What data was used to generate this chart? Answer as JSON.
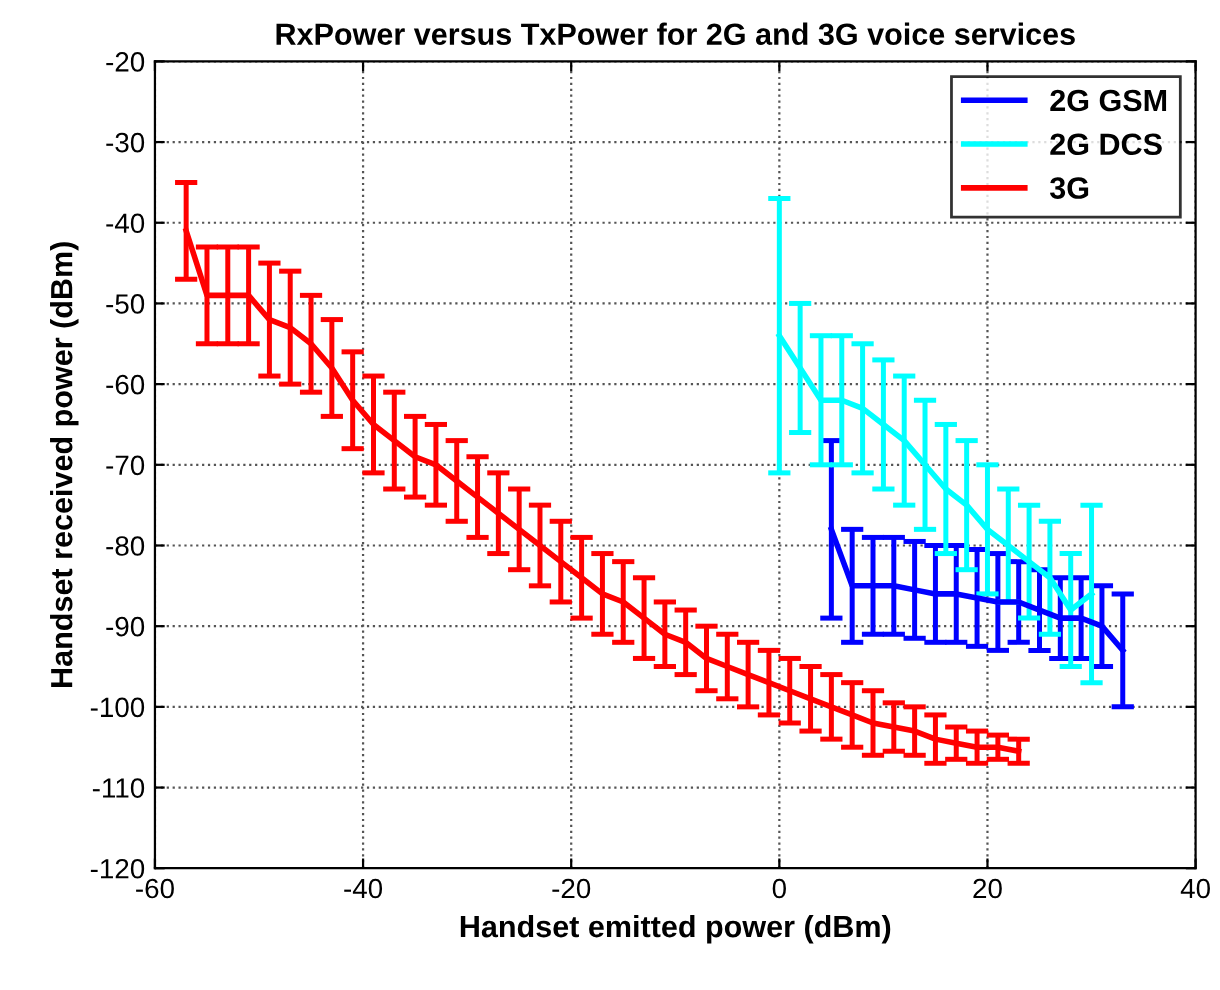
{
  "chart_data": {
    "type": "line",
    "title": "RxPower versus TxPower for 2G and 3G voice services",
    "xlabel": "Handset emitted power (dBm)",
    "ylabel": "Handset received power (dBm)",
    "xlim": [
      -60,
      40
    ],
    "xticks": [
      -60,
      -40,
      -20,
      0,
      20,
      40
    ],
    "ylim": [
      -120,
      -20
    ],
    "yticks": [
      -120,
      -110,
      -100,
      -90,
      -80,
      -70,
      -60,
      -50,
      -40,
      -30,
      -20
    ],
    "grid": true,
    "line_style": "solid",
    "legend": "top right",
    "marker": "none",
    "series": [
      {
        "name": "2G GSM",
        "color": "#0000ff",
        "x": [
          5,
          7,
          9,
          11,
          13,
          15,
          17,
          19,
          21,
          23,
          25,
          27,
          29,
          31,
          33
        ],
        "values": [
          -78,
          -85,
          -85,
          -85,
          -85.5,
          -86,
          -86,
          -86.5,
          -87,
          -87,
          -88,
          -89,
          -89,
          -90,
          -93
        ],
        "errors": [
          11,
          7,
          6,
          6,
          6,
          6,
          6,
          6,
          6,
          5,
          5,
          5,
          5,
          5,
          7
        ]
      },
      {
        "name": "2G DCS",
        "color": "#00ffff",
        "x": [
          0,
          2,
          4,
          6,
          8,
          10,
          12,
          14,
          16,
          18,
          20,
          22,
          24,
          26,
          28,
          30
        ],
        "values": [
          -54,
          -58,
          -62,
          -62,
          -63,
          -65,
          -67,
          -70,
          -73,
          -75,
          -78,
          -80,
          -82,
          -84,
          -88,
          -86
        ],
        "errors": [
          17,
          8,
          8,
          8,
          8,
          8,
          8,
          8,
          8,
          8,
          8,
          7,
          7,
          7,
          7,
          11
        ]
      },
      {
        "name": "3G",
        "color": "#ff0000",
        "x": [
          -57,
          -55,
          -53,
          -51,
          -49,
          -47,
          -45,
          -43,
          -41,
          -39,
          -37,
          -35,
          -33,
          -31,
          -29,
          -27,
          -25,
          -23,
          -21,
          -19,
          -17,
          -15,
          -13,
          -11,
          -9,
          -7,
          -5,
          -3,
          -1,
          1,
          3,
          5,
          7,
          9,
          11,
          13,
          15,
          17,
          19,
          21,
          23
        ],
        "values": [
          -41,
          -49,
          -49,
          -49,
          -52,
          -53,
          -55,
          -58,
          -62,
          -65,
          -67,
          -69,
          -70,
          -72,
          -74,
          -76,
          -78,
          -80,
          -82,
          -84,
          -86,
          -87,
          -89,
          -91,
          -92,
          -94,
          -95,
          -96,
          -97,
          -98,
          -99,
          -100,
          -101,
          -102,
          -102.5,
          -103,
          -104,
          -104.5,
          -105,
          -105,
          -105.5
        ],
        "errors": [
          6,
          6,
          6,
          6,
          7,
          7,
          6,
          6,
          6,
          6,
          6,
          5,
          5,
          5,
          5,
          5,
          5,
          5,
          5,
          5,
          5,
          5,
          5,
          4,
          4,
          4,
          4,
          4,
          4,
          4,
          4,
          4,
          4,
          4,
          3,
          3,
          3,
          2,
          2,
          1.5,
          1.5
        ]
      }
    ]
  }
}
